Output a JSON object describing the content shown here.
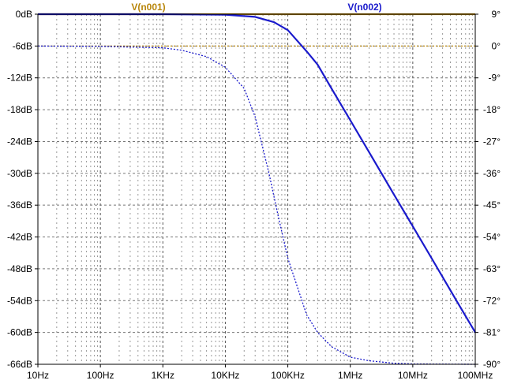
{
  "chart_data": {
    "type": "line",
    "title": "",
    "xlabel": "",
    "ylabel": "",
    "x_scale": "log",
    "x_range_hz": [
      10,
      100000000
    ],
    "x_tick_labels": [
      "10Hz",
      "100Hz",
      "1KHz",
      "10KHz",
      "100KHz",
      "1MHz",
      "10MHz",
      "100MHz"
    ],
    "x_tick_values_hz": [
      10,
      100,
      1000,
      10000,
      100000,
      1000000,
      10000000,
      100000000
    ],
    "y_left_range_db": [
      -66,
      0
    ],
    "y_left_ticks_db": [
      0,
      -6,
      -12,
      -18,
      -24,
      -30,
      -36,
      -42,
      -48,
      -54,
      -60,
      -66
    ],
    "y_left_tick_labels": [
      "0dB",
      "-6dB",
      "-12dB",
      "-18dB",
      "-24dB",
      "-30dB",
      "-36dB",
      "-42dB",
      "-48dB",
      "-54dB",
      "-60dB",
      "-66dB"
    ],
    "y_right_range_deg": [
      -90,
      9
    ],
    "y_right_ticks_deg": [
      9,
      0,
      -9,
      -18,
      -27,
      -36,
      -45,
      -54,
      -63,
      -72,
      -81,
      -90
    ],
    "y_right_tick_labels": [
      "9°",
      "0°",
      "-9°",
      "-18°",
      "-27°",
      "-36°",
      "-45°",
      "-54°",
      "-63°",
      "-72°",
      "-81°",
      "-90°"
    ],
    "grid": true,
    "legend_position": "top",
    "series": [
      {
        "name": "V(n001)",
        "color": "#b8860b",
        "axis": "left",
        "x": [
          10,
          100,
          1000,
          10000,
          100000,
          1000000,
          10000000,
          100000000
        ],
        "y": [
          0,
          0,
          0,
          0,
          0,
          0,
          0,
          0
        ]
      },
      {
        "name": "V(n001)",
        "color": "#b8860b",
        "axis": "right",
        "x": [
          10,
          100,
          1000,
          10000,
          100000,
          1000000,
          10000000,
          100000000
        ],
        "y": [
          0,
          0,
          0,
          0,
          0,
          0,
          0,
          0
        ]
      },
      {
        "name": "V(n002)",
        "color": "#1a1acc",
        "axis": "left",
        "x": [
          10,
          1000,
          10000,
          30000,
          60000,
          100000,
          200000,
          300000,
          500000,
          1000000,
          2000000,
          5000000,
          10000000,
          20000000,
          50000000,
          100000000
        ],
        "y": [
          0,
          0,
          -0.1,
          -0.5,
          -1.5,
          -3,
          -7,
          -9.5,
          -14,
          -20,
          -26,
          -34,
          -40,
          -46,
          -54,
          -60
        ]
      },
      {
        "name": "V(n002)",
        "color": "#1a1acc",
        "axis": "right",
        "x": [
          10,
          100,
          1000,
          2000,
          5000,
          10000,
          20000,
          30000,
          50000,
          70000,
          100000,
          200000,
          300000,
          500000,
          1000000,
          2000000,
          5000000,
          10000000,
          100000000
        ],
        "y": [
          0,
          -0.1,
          -0.5,
          -1.2,
          -3,
          -6,
          -12,
          -20,
          -36,
          -48,
          -60,
          -76,
          -81,
          -85,
          -88,
          -89,
          -89.7,
          -89.9,
          -90
        ]
      }
    ]
  }
}
